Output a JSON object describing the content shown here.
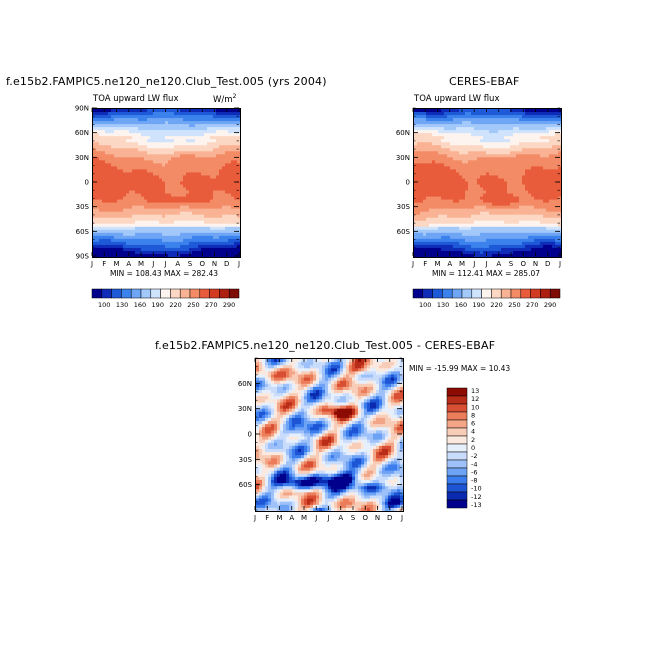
{
  "colors": {
    "abs": [
      "#00008c",
      "#0f2cb9",
      "#1e5ad8",
      "#3c82ec",
      "#6ea5f5",
      "#a3c8fa",
      "#cfe3fc",
      "#fdf4ef",
      "#fcd8c4",
      "#f9b394",
      "#f38b66",
      "#e85c3c",
      "#d33a22",
      "#ad1f10",
      "#7e0b04"
    ],
    "diff": [
      "#00008c",
      "#0a2bb0",
      "#1e55d4",
      "#3c7ded",
      "#6ea2f5",
      "#9dc1f8",
      "#c9dcfb",
      "#e6effc",
      "#fbe9df",
      "#f8cdb8",
      "#f3a687",
      "#eb7d5b",
      "#d84f33",
      "#b82c18",
      "#8c0b02"
    ]
  },
  "chart_data": [
    {
      "type": "heatmap",
      "title": "f.e15b2.FAMPIC5.ne120_ne120.Club_Test.005 (yrs 2004)",
      "subtitle_left": "TOA upward LW flux",
      "units": "W/m",
      "units_sup": "2",
      "stats": "MIN = 108.43  MAX = 282.43",
      "x_ticks": [
        "J",
        "F",
        "M",
        "A",
        "M",
        "J",
        "J",
        "A",
        "S",
        "O",
        "N",
        "D",
        "J"
      ],
      "y_ticks": [
        "90N",
        "60N",
        "30N",
        "0",
        "30S",
        "60S",
        "90S"
      ],
      "y_values": [
        90,
        60,
        30,
        0,
        -30,
        -60,
        -90
      ],
      "ylim": [
        -90,
        90
      ],
      "colorbar_labels": [
        "100",
        "130",
        "160",
        "190",
        "220",
        "250",
        "270",
        "290"
      ],
      "data_range": [
        108.43,
        282.43
      ]
    },
    {
      "type": "heatmap",
      "title": "CERES-EBAF",
      "subtitle_left": "TOA upward LW flux",
      "stats": "MIN = 112.41  MAX = 285.07",
      "x_ticks": [
        "J",
        "F",
        "M",
        "A",
        "M",
        "J",
        "J",
        "A",
        "S",
        "O",
        "N",
        "D",
        "J"
      ],
      "y_ticks": [
        "60N",
        "30N",
        "0",
        "30S",
        "60S"
      ],
      "y_values": [
        60,
        30,
        0,
        -30,
        -60
      ],
      "ylim": [
        -90,
        90
      ],
      "colorbar_labels": [
        "100",
        "130",
        "160",
        "190",
        "220",
        "250",
        "270",
        "290"
      ],
      "data_range": [
        112.41,
        285.07
      ]
    },
    {
      "type": "heatmap",
      "title": "f.e15b2.FAMPIC5.ne120_ne120.Club_Test.005 - CERES-EBAF",
      "stats": "MIN = -15.99  MAX =  10.43",
      "x_ticks": [
        "J",
        "F",
        "M",
        "A",
        "M",
        "J",
        "J",
        "A",
        "S",
        "O",
        "N",
        "D",
        "J"
      ],
      "y_ticks": [
        "60N",
        "30N",
        "0",
        "30S",
        "60S"
      ],
      "y_values": [
        60,
        30,
        0,
        -30,
        -60
      ],
      "ylim": [
        -90,
        90
      ],
      "colorbar_labels": [
        "13",
        "12",
        "10",
        "8",
        "6",
        "4",
        "2",
        "0",
        "-2",
        "-4",
        "-6",
        "-8",
        "-10",
        "-12",
        "-13"
      ],
      "data_range": [
        -15.99,
        10.43
      ]
    }
  ]
}
